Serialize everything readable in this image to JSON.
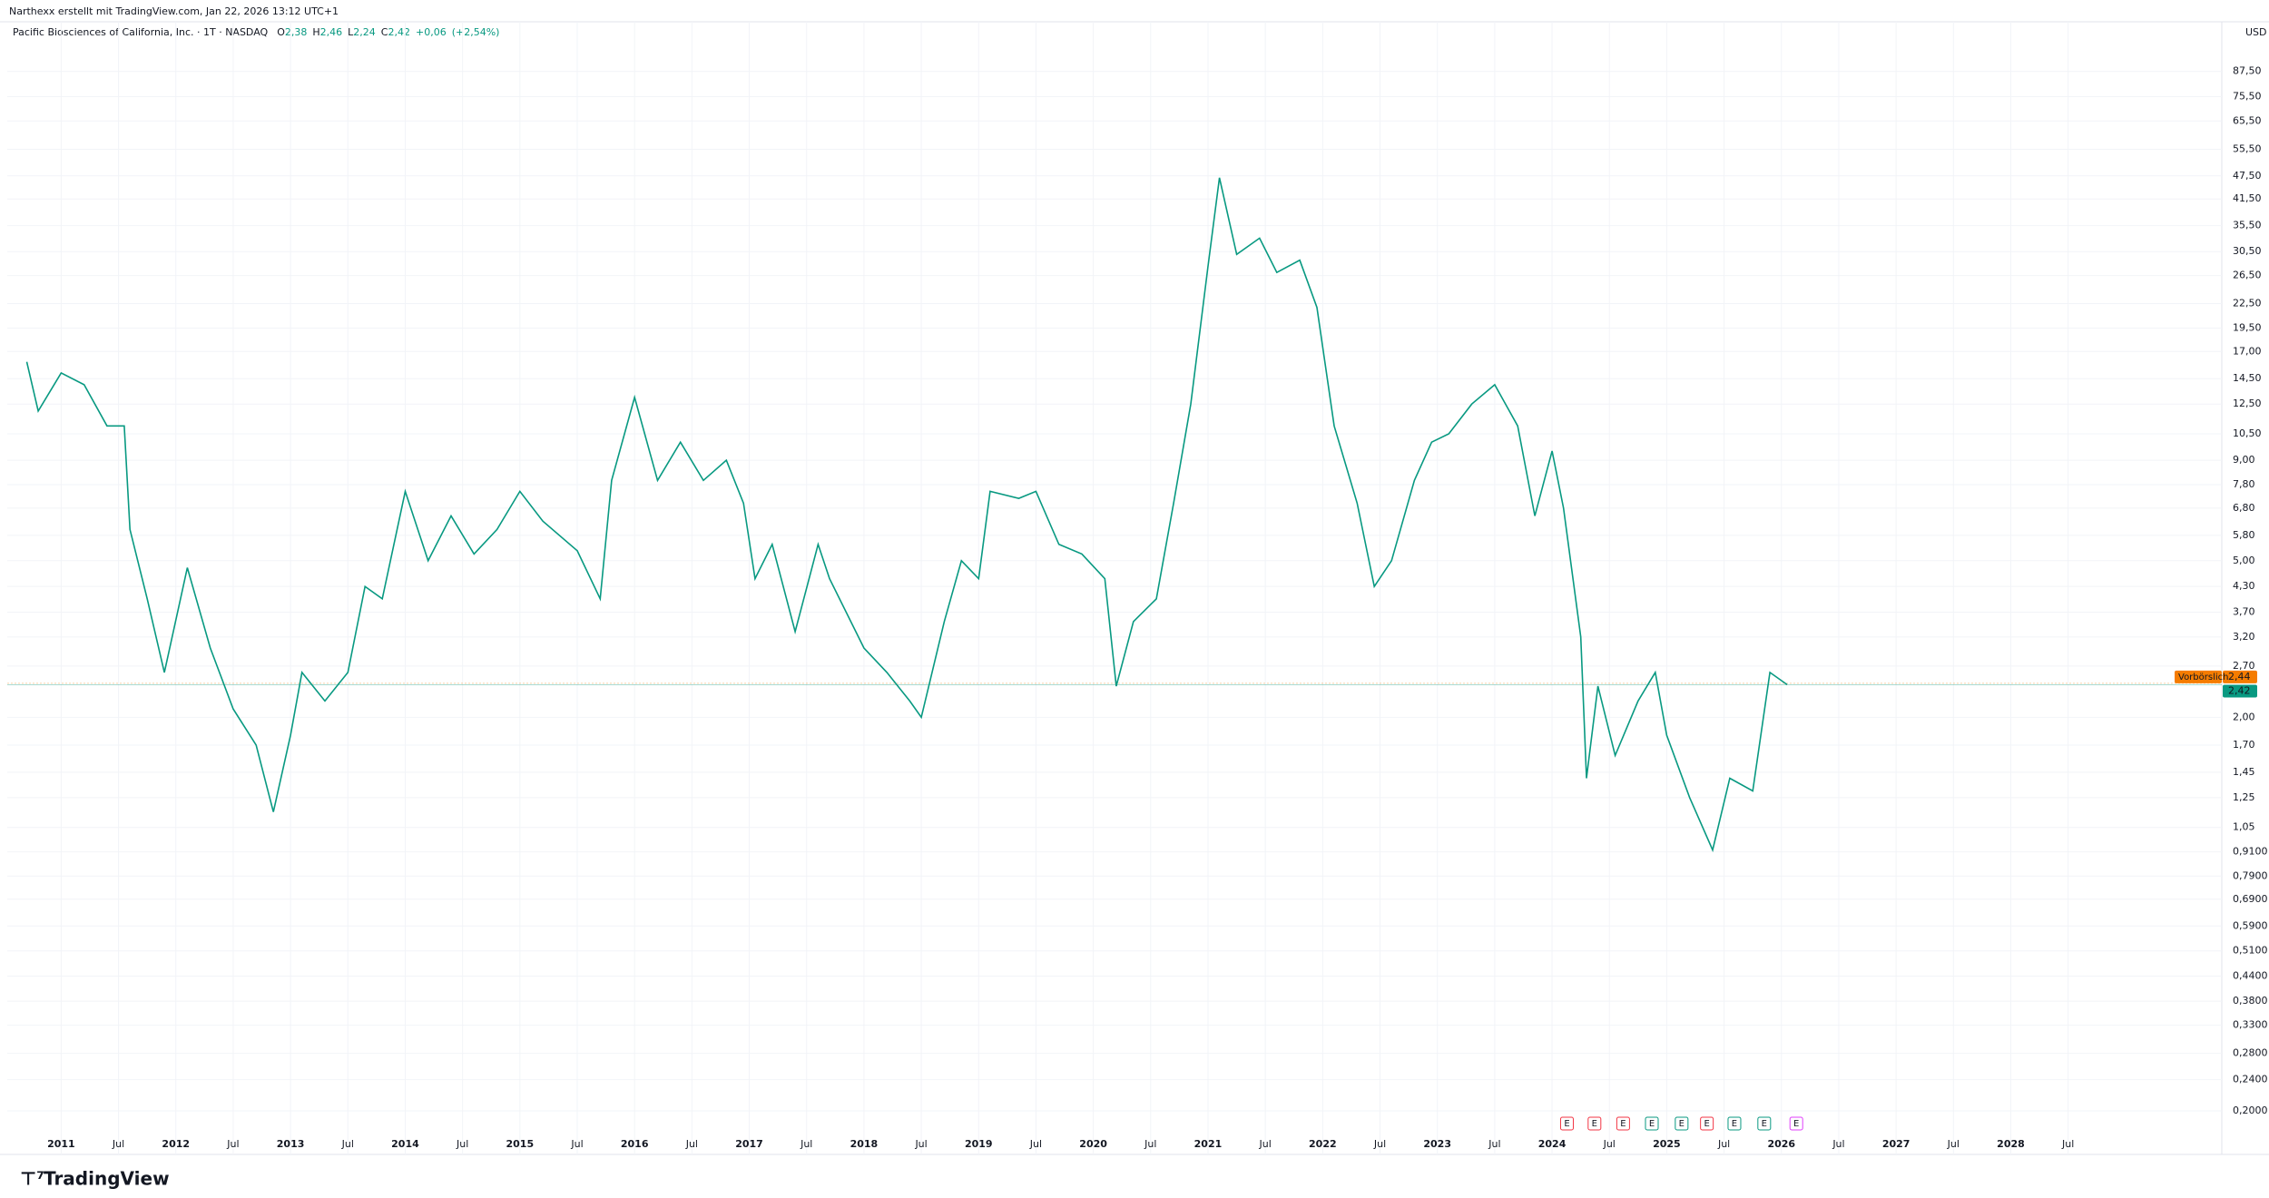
{
  "header": {
    "credit": "Narthexx erstellt mit TradingView.com, Jan 22, 2026 13:12 UTC+1",
    "brand": "TradingView"
  },
  "chart_data": {
    "type": "line",
    "title": "Pacific Biosciences of California, Inc. · 1T · NASDAQ",
    "legend_values": [
      {
        "key": "O",
        "value": 2.38,
        "label": "2,38"
      },
      {
        "key": "H",
        "value": 2.46,
        "label": "2,46"
      },
      {
        "key": "L",
        "value": 2.24,
        "label": "2,24"
      },
      {
        "key": "C",
        "value": 2.42,
        "label": "2,42"
      }
    ],
    "change": [
      {
        "value": 0.06,
        "label": "+0,06"
      },
      {
        "value": 2.54,
        "label": "(+2,54%)"
      }
    ],
    "currency": "USD",
    "log_scale": true,
    "grid": true,
    "color": "#089981",
    "x": [
      2010.7,
      2010.8,
      2011.0,
      2011.2,
      2011.4,
      2011.55,
      2011.6,
      2011.75,
      2011.9,
      2012.1,
      2012.3,
      2012.5,
      2012.7,
      2012.85,
      2013.0,
      2013.1,
      2013.3,
      2013.5,
      2013.65,
      2013.8,
      2014.0,
      2014.2,
      2014.4,
      2014.6,
      2014.8,
      2015.0,
      2015.2,
      2015.5,
      2015.7,
      2015.8,
      2016.0,
      2016.2,
      2016.4,
      2016.6,
      2016.8,
      2016.95,
      2017.05,
      2017.2,
      2017.4,
      2017.6,
      2017.7,
      2018.0,
      2018.2,
      2018.4,
      2018.5,
      2018.7,
      2018.85,
      2019.0,
      2019.1,
      2019.35,
      2019.5,
      2019.7,
      2019.9,
      2020.1,
      2020.2,
      2020.35,
      2020.55,
      2020.7,
      2020.85,
      2021.0,
      2021.1,
      2021.25,
      2021.45,
      2021.6,
      2021.8,
      2021.95,
      2022.1,
      2022.3,
      2022.45,
      2022.6,
      2022.8,
      2022.95,
      2023.1,
      2023.3,
      2023.5,
      2023.7,
      2023.85,
      2024.0,
      2024.1,
      2024.25,
      2024.3,
      2024.4,
      2024.55,
      2024.75,
      2024.9,
      2025.0,
      2025.2,
      2025.4,
      2025.55,
      2025.75,
      2025.9,
      2026.05
    ],
    "values": [
      16,
      12,
      15,
      14,
      11,
      11,
      6,
      4,
      2.6,
      4.8,
      3,
      2.1,
      1.7,
      1.15,
      1.8,
      2.6,
      2.2,
      2.6,
      4.3,
      4,
      7.5,
      5,
      6.5,
      5.2,
      6,
      7.5,
      6.3,
      5.3,
      4.0,
      8,
      13,
      8,
      10,
      8,
      9,
      7,
      4.5,
      5.5,
      3.3,
      5.5,
      4.5,
      3,
      2.6,
      2.2,
      2.0,
      3.5,
      5,
      4.5,
      7.5,
      7.2,
      7.5,
      5.5,
      5.2,
      4.5,
      2.4,
      3.5,
      4,
      7,
      12.5,
      28,
      47,
      30,
      33,
      27,
      29,
      22,
      11,
      7,
      4.3,
      5,
      8,
      10,
      10.5,
      12.5,
      14,
      11,
      6.5,
      9.5,
      6.8,
      3.2,
      1.4,
      2.4,
      1.6,
      2.2,
      2.6,
      1.8,
      1.25,
      0.92,
      1.4,
      1.3,
      2.6,
      2.42
    ],
    "xlim": [
      2010.53,
      2029.84
    ],
    "ylim": [
      0.155,
      117
    ],
    "yticks": [
      {
        "value": 87.5,
        "label": "87,50"
      },
      {
        "value": 75.5,
        "label": "75,50"
      },
      {
        "value": 65.5,
        "label": "65,50"
      },
      {
        "value": 55.5,
        "label": "55,50"
      },
      {
        "value": 47.5,
        "label": "47,50"
      },
      {
        "value": 41.5,
        "label": "41,50"
      },
      {
        "value": 35.5,
        "label": "35,50"
      },
      {
        "value": 30.5,
        "label": "30,50"
      },
      {
        "value": 26.5,
        "label": "26,50"
      },
      {
        "value": 22.5,
        "label": "22,50"
      },
      {
        "value": 19.5,
        "label": "19,50"
      },
      {
        "value": 17,
        "label": "17,00"
      },
      {
        "value": 14.5,
        "label": "14,50"
      },
      {
        "value": 12.5,
        "label": "12,50"
      },
      {
        "value": 10.5,
        "label": "10,50"
      },
      {
        "value": 9,
        "label": "9,00"
      },
      {
        "value": 7.8,
        "label": "7,80"
      },
      {
        "value": 6.8,
        "label": "6,80"
      },
      {
        "value": 5.8,
        "label": "5,80"
      },
      {
        "value": 5,
        "label": "5,00"
      },
      {
        "value": 4.3,
        "label": "4,30"
      },
      {
        "value": 3.7,
        "label": "3,70"
      },
      {
        "value": 3.2,
        "label": "3,20"
      },
      {
        "value": 2.7,
        "label": "2,70"
      },
      {
        "value": 2,
        "label": "2,00"
      },
      {
        "value": 1.7,
        "label": "1,70"
      },
      {
        "value": 1.45,
        "label": "1,45"
      },
      {
        "value": 1.25,
        "label": "1,25"
      },
      {
        "value": 1.05,
        "label": "1,05"
      },
      {
        "value": 0.91,
        "label": "0,9100"
      },
      {
        "value": 0.79,
        "label": "0,7900"
      },
      {
        "value": 0.69,
        "label": "0,6900"
      },
      {
        "value": 0.59,
        "label": "0,5900"
      },
      {
        "value": 0.51,
        "label": "0,5100"
      },
      {
        "value": 0.44,
        "label": "0,4400"
      },
      {
        "value": 0.38,
        "label": "0,3800"
      },
      {
        "value": 0.33,
        "label": "0,3300"
      },
      {
        "value": 0.28,
        "label": "0,2800"
      },
      {
        "value": 0.24,
        "label": "0,2400"
      },
      {
        "value": 0.2,
        "label": "0,2000"
      }
    ],
    "xticks": [
      2011,
      {
        "value": 2011.5,
        "label": "Jul"
      },
      2012,
      {
        "value": 2012.5,
        "label": "Jul"
      },
      2013,
      {
        "value": 2013.5,
        "label": "Jul"
      },
      2014,
      {
        "value": 2014.5,
        "label": "Jul"
      },
      2015,
      {
        "value": 2015.5,
        "label": "Jul"
      },
      2016,
      {
        "value": 2016.5,
        "label": "Jul"
      },
      2017,
      {
        "value": 2017.5,
        "label": "Jul"
      },
      2018,
      {
        "value": 2018.5,
        "label": "Jul"
      },
      2019,
      {
        "value": 2019.5,
        "label": "Jul"
      },
      2020,
      {
        "value": 2020.5,
        "label": "Jul"
      },
      2021,
      {
        "value": 2021.5,
        "label": "Jul"
      },
      2022,
      {
        "value": 2022.5,
        "label": "Jul"
      },
      2023,
      {
        "value": 2023.5,
        "label": "Jul"
      },
      2024,
      {
        "value": 2024.5,
        "label": "Jul"
      },
      2025,
      {
        "value": 2025.5,
        "label": "Jul"
      },
      2026,
      {
        "value": 2026.5,
        "label": "Jul"
      },
      2027,
      {
        "value": 2027.5,
        "label": "Jul"
      },
      2028,
      {
        "value": 2028.5,
        "label": "Jul"
      }
    ],
    "price_lines": [
      {
        "name": "Vorbörslich",
        "value": 2.44,
        "label": "2,44",
        "color": "#f57c00"
      },
      {
        "value": 2.42,
        "label": "2,42",
        "color": "#089981"
      }
    ],
    "events": [
      {
        "x": 2024.13,
        "label": "E",
        "color": "#f23645"
      },
      {
        "x": 2024.37,
        "label": "E",
        "color": "#f23645"
      },
      {
        "x": 2024.62,
        "label": "E",
        "color": "#f23645"
      },
      {
        "x": 2024.87,
        "label": "E",
        "color": "#089981"
      },
      {
        "x": 2025.13,
        "label": "E",
        "color": "#089981"
      },
      {
        "x": 2025.35,
        "label": "E",
        "color": "#f23645"
      },
      {
        "x": 2025.59,
        "label": "E",
        "color": "#089981"
      },
      {
        "x": 2025.85,
        "label": "E",
        "color": "#089981"
      },
      {
        "x": 2026.13,
        "label": "E",
        "color": "#e040fb"
      }
    ]
  }
}
